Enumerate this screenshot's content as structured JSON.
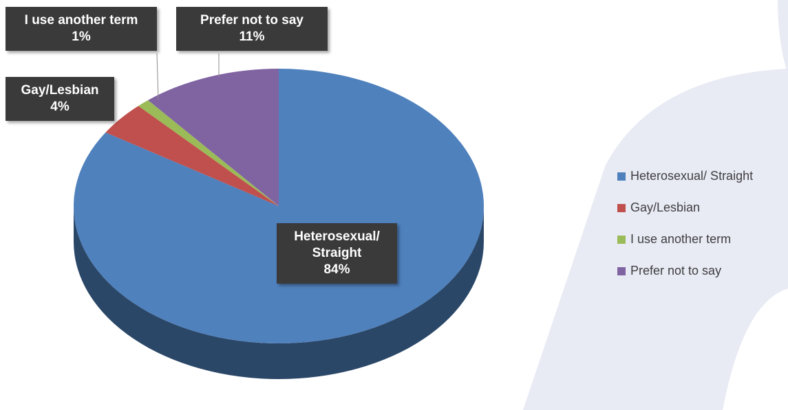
{
  "chart_data": {
    "type": "pie",
    "categories": [
      "Heterosexual/ Straight",
      "Gay/Lesbian",
      "I use another term",
      "Prefer not to say"
    ],
    "values": [
      84,
      4,
      1,
      11
    ],
    "value_labels": [
      "84%",
      "4%",
      "1%",
      "11%"
    ],
    "colors": [
      "#4f81bd",
      "#c0504d",
      "#9bbb59",
      "#8064a2"
    ],
    "legend": "right"
  }
}
